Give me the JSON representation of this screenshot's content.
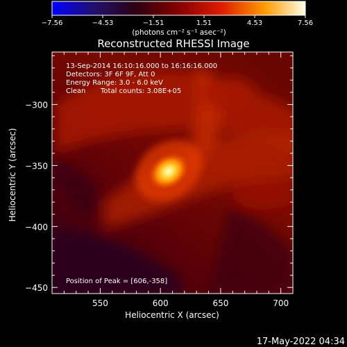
{
  "chart_data": {
    "type": "heatmap",
    "title": "Reconstructed RHESSI Image",
    "xlabel": "Heliocentric X (arcsec)",
    "ylabel": "Heliocentric Y (arcsec)",
    "x_ticks": [
      550,
      600,
      650,
      700
    ],
    "y_ticks": [
      -300,
      -350,
      -400,
      -450
    ],
    "xlim": [
      510,
      710
    ],
    "ylim": [
      -455,
      -257
    ],
    "colorbar": {
      "ticks": [
        "−7.56",
        "−4.53",
        "−1.51",
        "1.51",
        "4.53",
        "7.56"
      ],
      "range": [
        -7.56,
        7.56
      ],
      "unit_label": "(photons cm⁻² s⁻¹ asec⁻²)",
      "colormap": [
        "#0000ff",
        "#1a0c6a",
        "#2a0010",
        "#8b0000",
        "#e02000",
        "#ff9c00",
        "#ffffe0"
      ]
    },
    "annotations": {
      "time": "13-Sep-2014 16:10:16.000 to 16:16:16.000",
      "detectors": "Detectors: 3F 6F 9F, Att 0",
      "energy": "Energy Range: 3.0 - 6.0 keV",
      "clean": "Clean",
      "total_counts": "Total counts: 3.08E+05",
      "peak_position": "Position of Peak = [606,-358]"
    },
    "peak": {
      "x": 606,
      "y": -358
    }
  },
  "footer_timestamp": "17-May-2022 04:34"
}
